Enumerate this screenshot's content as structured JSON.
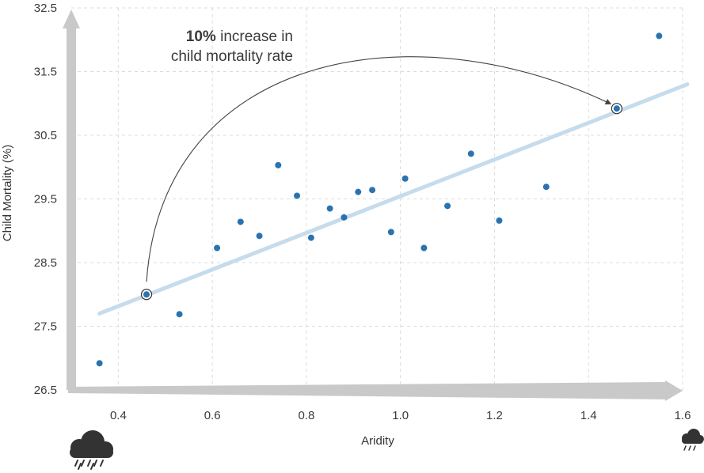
{
  "chart_data": {
    "type": "scatter",
    "title": "",
    "xlabel": "Aridity",
    "ylabel": "Child Mortality (%)",
    "xlim": [
      0.3,
      1.6
    ],
    "ylim": [
      26.5,
      32.5
    ],
    "x_ticks": [
      "0.4",
      "0.6",
      "0.8",
      "1.0",
      "1.2",
      "1.4",
      "1.6"
    ],
    "y_ticks": [
      "32.5",
      "31.5",
      "30.5",
      "29.5",
      "28.5",
      "27.5",
      "26.5"
    ],
    "grid": true,
    "series": [
      {
        "x": [
          0.36,
          0.53,
          0.61,
          0.66,
          0.7,
          0.74,
          0.78,
          0.81,
          0.85,
          0.88,
          0.91,
          0.94,
          0.98,
          1.01,
          1.05,
          1.1,
          1.15,
          1.21,
          1.31,
          1.55
        ],
        "y": [
          26.92,
          27.69,
          28.73,
          29.14,
          28.92,
          30.03,
          29.55,
          28.89,
          29.35,
          29.21,
          29.61,
          29.64,
          28.98,
          29.82,
          28.73,
          29.39,
          30.21,
          29.16,
          29.69,
          32.06
        ],
        "color": "#2a73b0"
      }
    ],
    "trendline": {
      "x": [
        0.36,
        1.61
      ],
      "y": [
        27.7,
        31.3
      ],
      "color": "#c6dcec"
    },
    "highlighted_points": [
      {
        "x": 0.46,
        "y": 28.0
      },
      {
        "x": 1.46,
        "y": 30.92
      }
    ],
    "annotation": {
      "bold": "10%",
      "line1_rest": " increase in",
      "line2": "child mortality rate"
    },
    "icons": [
      "heavy-rain-cloud-icon",
      "light-rain-cloud-icon"
    ]
  }
}
